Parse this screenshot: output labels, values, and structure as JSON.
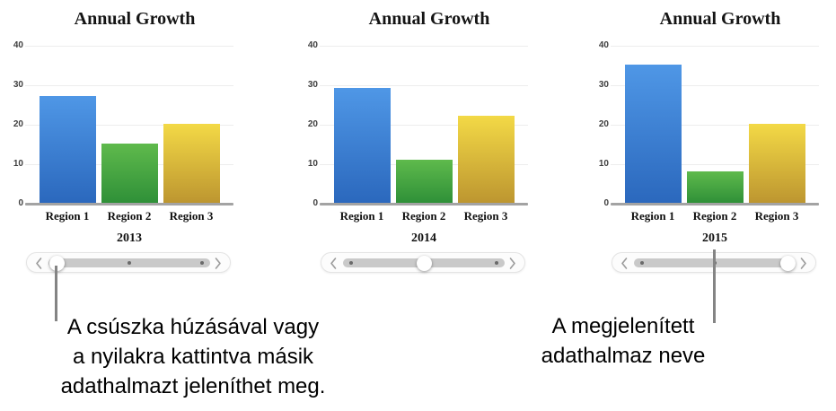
{
  "charts": [
    {
      "title": "Annual Growth",
      "year": "2013",
      "categories": [
        "Region 1",
        "Region 2",
        "Region 3"
      ],
      "values": [
        27,
        15,
        20
      ],
      "slider": {
        "thumb_index": 0,
        "positions_total": 3
      }
    },
    {
      "title": "Annual Growth",
      "year": "2014",
      "categories": [
        "Region 1",
        "Region 2",
        "Region 3"
      ],
      "values": [
        29,
        11,
        22
      ],
      "slider": {
        "thumb_index": 1,
        "positions_total": 3
      }
    },
    {
      "title": "Annual Growth",
      "year": "2015",
      "categories": [
        "Region 1",
        "Region 2",
        "Region 3"
      ],
      "values": [
        35,
        8,
        20
      ],
      "slider": {
        "thumb_index": 2,
        "positions_total": 3
      }
    }
  ],
  "y_axis": {
    "ticks": [
      "40",
      "30",
      "20",
      "10",
      "0"
    ],
    "max": 40
  },
  "callouts": [
    {
      "lines": [
        "A csúszka húzásával vagy",
        "a nyilakra kattintva másik",
        "adathalmazt jeleníthet meg."
      ]
    },
    {
      "lines": [
        "A megjelenített",
        "adathalmaz neve"
      ]
    }
  ],
  "colors": {
    "bar_gradients": [
      {
        "top": "#4f97e6",
        "bottom": "#2b68bd"
      },
      {
        "top": "#5fba4c",
        "bottom": "#2f9038"
      },
      {
        "top": "#f3d946",
        "bottom": "#bd9630"
      }
    ],
    "gridline": "#ededed",
    "axis_line": "#a3a3a3",
    "slider_track": "#c9c9c9",
    "callout_line": "#848484"
  },
  "chart_data": [
    {
      "type": "bar",
      "title": "Annual Growth",
      "series_label": "2013",
      "categories": [
        "Region 1",
        "Region 2",
        "Region 3"
      ],
      "values": [
        27,
        15,
        20
      ],
      "xlabel": "",
      "ylabel": "",
      "ylim": [
        0,
        40
      ],
      "yticks": [
        0,
        10,
        20,
        30,
        40
      ],
      "grid": true,
      "legend": false
    },
    {
      "type": "bar",
      "title": "Annual Growth",
      "series_label": "2014",
      "categories": [
        "Region 1",
        "Region 2",
        "Region 3"
      ],
      "values": [
        29,
        11,
        22
      ],
      "xlabel": "",
      "ylabel": "",
      "ylim": [
        0,
        40
      ],
      "yticks": [
        0,
        10,
        20,
        30,
        40
      ],
      "grid": true,
      "legend": false
    },
    {
      "type": "bar",
      "title": "Annual Growth",
      "series_label": "2015",
      "categories": [
        "Region 1",
        "Region 2",
        "Region 3"
      ],
      "values": [
        35,
        8,
        20
      ],
      "xlabel": "",
      "ylabel": "",
      "ylim": [
        0,
        40
      ],
      "yticks": [
        0,
        10,
        20,
        30,
        40
      ],
      "grid": true,
      "legend": false
    }
  ]
}
